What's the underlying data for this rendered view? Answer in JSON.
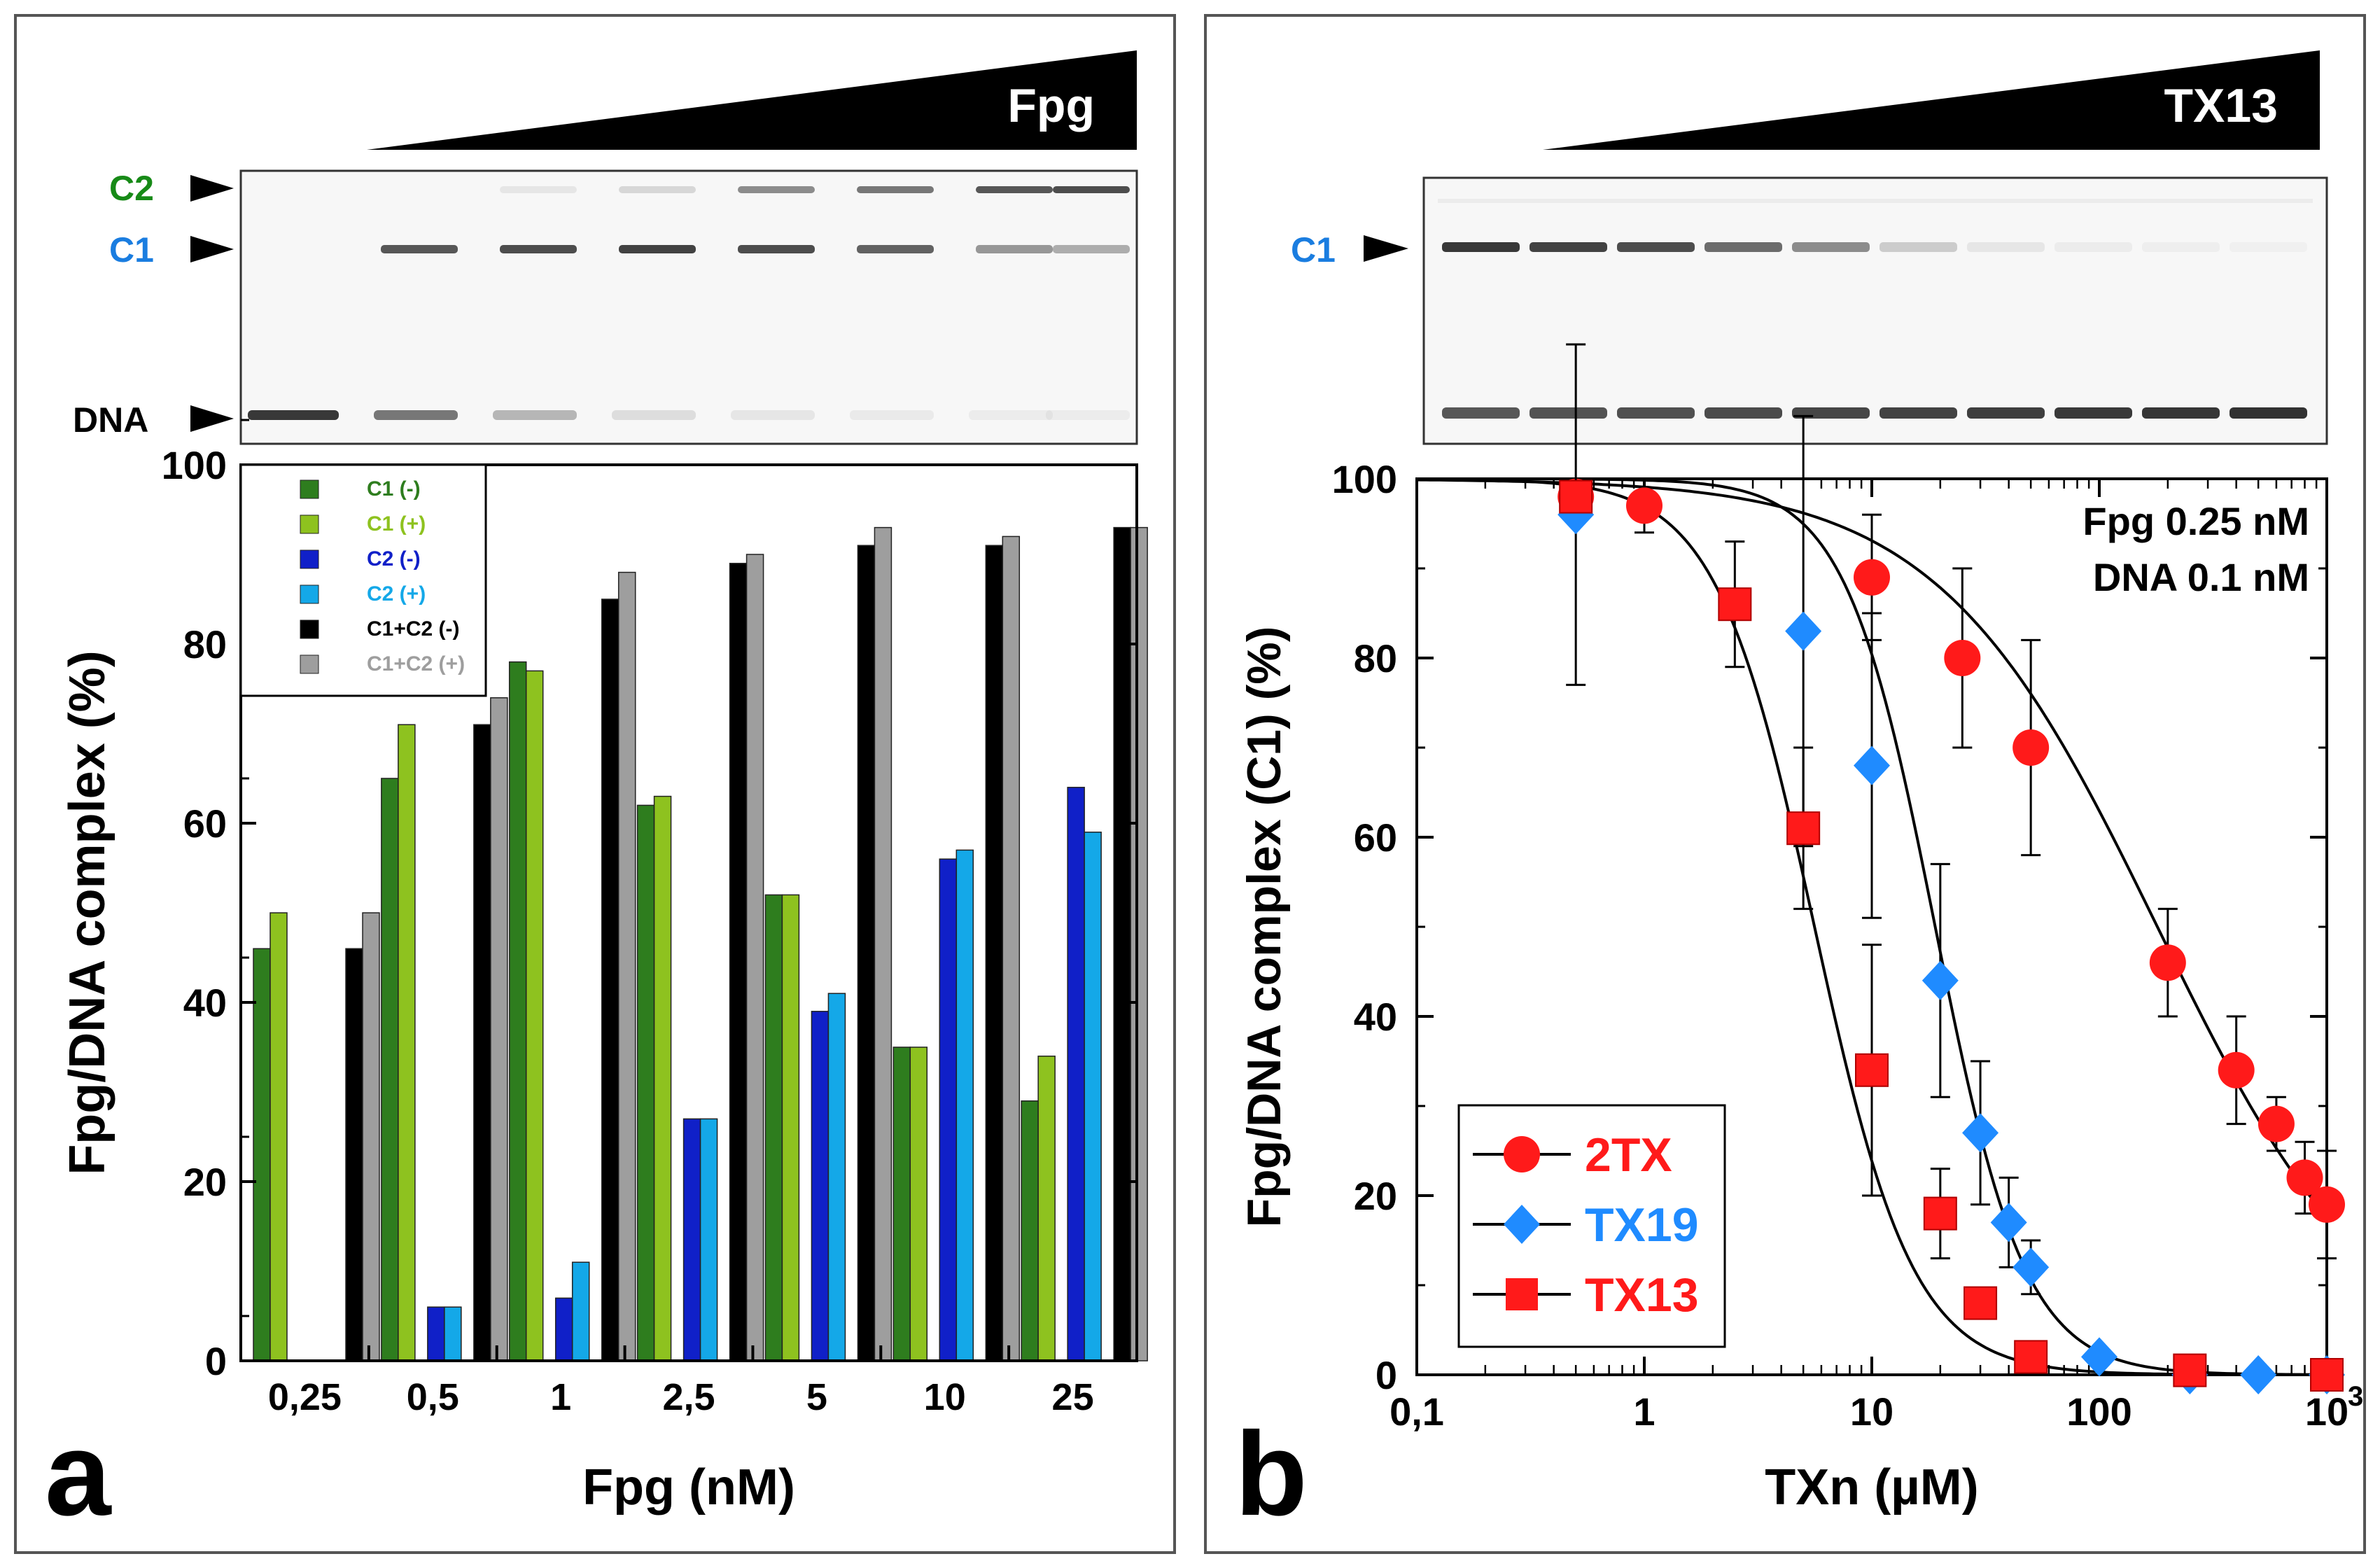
{
  "panel_a": {
    "letter": "a",
    "gel_label": "Fpg",
    "band_labels": [
      "C2",
      "C1",
      "DNA"
    ],
    "colors": {
      "c1_minus": "#2e7d1e",
      "c1_plus": "#8ec21f",
      "c2_minus": "#1020c8",
      "c2_plus": "#14a8e8",
      "sum_minus": "#000000",
      "sum_plus": "#9e9e9e",
      "c2_label": "#178a17",
      "c1_label": "#1a7de0"
    }
  },
  "panel_b": {
    "letter": "b",
    "gel_label": "TX13",
    "band_labels": [
      "C1"
    ],
    "annotation_line1": "Fpg 0.25 nM",
    "annotation_line2": "DNA 0.1 nM",
    "colors": {
      "tx2": "#ff1a1a",
      "tx19": "#1f8bff",
      "tx13": "#ff1a1a",
      "c1_label": "#1a7de0"
    }
  },
  "chart_data": [
    {
      "type": "bar",
      "title": "",
      "xlabel": "Fpg (nM)",
      "ylabel": "Fpg/DNA complex (%)",
      "ylim": [
        0,
        100
      ],
      "yticks": [
        "0",
        "20",
        "40",
        "60",
        "80",
        "100"
      ],
      "categories": [
        "0,25",
        "0,5",
        "1",
        "2,5",
        "5",
        "10",
        "25"
      ],
      "legend_position": "top-left",
      "series": [
        {
          "name": "C1 (-)",
          "values": [
            46,
            65,
            78,
            62,
            52,
            35,
            29
          ]
        },
        {
          "name": "C1 (+)",
          "values": [
            50,
            71,
            77,
            63,
            52,
            35,
            34
          ]
        },
        {
          "name": "C2 (-)",
          "values": [
            0,
            6,
            7,
            27,
            39,
            56,
            64
          ]
        },
        {
          "name": "C2 (+)",
          "values": [
            0,
            6,
            11,
            27,
            41,
            57,
            59
          ]
        },
        {
          "name": "C1+C2 (-)",
          "values": [
            46,
            71,
            85,
            89,
            91,
            91,
            93
          ]
        },
        {
          "name": "C1+C2 (+)",
          "values": [
            50,
            74,
            88,
            90,
            93,
            92,
            93
          ]
        }
      ]
    },
    {
      "type": "scatter",
      "title": "",
      "xlabel": "TXn (µM)",
      "ylabel": "Fpg/DNA complex (C1) (%)",
      "xscale": "log",
      "xlim": [
        0.1,
        1000
      ],
      "ylim": [
        0,
        100
      ],
      "xticks": [
        "0,1",
        "1",
        "10",
        "100",
        "10"
      ],
      "xtick_last_superscript": "3",
      "yticks": [
        "0",
        "20",
        "40",
        "60",
        "80",
        "100"
      ],
      "legend_position": "bottom-left",
      "series": [
        {
          "name": "2TX",
          "marker": "circle",
          "x": [
            0.5,
            1,
            10,
            25,
            50,
            200,
            400,
            600,
            800,
            1000
          ],
          "y": [
            98,
            97,
            89,
            80,
            70,
            46,
            34,
            28,
            22,
            19
          ],
          "err": [
            0,
            3,
            7,
            10,
            12,
            6,
            6,
            3,
            4,
            6
          ],
          "fit_ic50": 180,
          "fit_hill": 0.9
        },
        {
          "name": "TX19",
          "marker": "diamond",
          "x": [
            0.5,
            5,
            10,
            20,
            30,
            40,
            50,
            100,
            250,
            500,
            1000
          ],
          "y": [
            96,
            83,
            68,
            44,
            27,
            17,
            12,
            2,
            0,
            0,
            0
          ],
          "err": [
            19,
            24,
            17,
            13,
            8,
            5,
            3,
            0,
            0,
            0,
            0
          ],
          "fit_ic50": 19,
          "fit_hill": 2.2
        },
        {
          "name": "TX13",
          "marker": "square",
          "x": [
            0.5,
            2.5,
            5,
            10,
            20,
            30,
            50,
            250,
            1000
          ],
          "y": [
            98,
            86,
            61,
            34,
            18,
            8,
            2,
            0.5,
            0
          ],
          "err": [
            0,
            7,
            9,
            14,
            5,
            0,
            0,
            0,
            0
          ],
          "fit_ic50": 5.6,
          "fit_hill": 2.0
        }
      ]
    }
  ]
}
